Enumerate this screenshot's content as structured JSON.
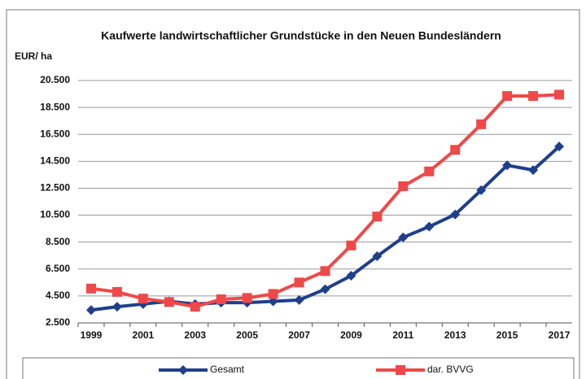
{
  "chart_data": {
    "type": "line",
    "title": "Kaufwerte landwirtschaftlicher Grundstücke in den Neuen Bundesländern",
    "y_label": "EUR/ ha",
    "categories": [
      "1999",
      null,
      "2001",
      null,
      "2003",
      null,
      "2005",
      null,
      "2007",
      null,
      "2009",
      null,
      "2011",
      null,
      "2013",
      null,
      "2015",
      null,
      "2017"
    ],
    "series": [
      {
        "name": "Gesamt",
        "color": "#1f3f8c",
        "marker": "diamond",
        "values": [
          3450,
          3700,
          3900,
          4100,
          3900,
          4000,
          4000,
          4100,
          4200,
          5000,
          6000,
          7450,
          8850,
          9650,
          10550,
          12350,
          14200,
          13850,
          15600
        ]
      },
      {
        "name": "dar. BVVG",
        "color": "#f04848",
        "marker": "square",
        "values": [
          5050,
          4800,
          4300,
          4050,
          3700,
          4250,
          4350,
          4650,
          5500,
          6350,
          8250,
          10400,
          12650,
          13750,
          15350,
          17250,
          19350,
          19350,
          19450
        ]
      }
    ],
    "ylim": [
      2500,
      20500
    ],
    "yticks": [
      {
        "value": 2500,
        "label": "2.500"
      },
      {
        "value": 4500,
        "label": "4.500"
      },
      {
        "value": 6500,
        "label": "6.500"
      },
      {
        "value": 8500,
        "label": "8.500"
      },
      {
        "value": 10500,
        "label": "10.500"
      },
      {
        "value": 12500,
        "label": "12.500"
      },
      {
        "value": 14500,
        "label": "14.500"
      },
      {
        "value": 16500,
        "label": "16.500"
      },
      {
        "value": 18500,
        "label": "18.500"
      },
      {
        "value": 20500,
        "label": "20.500"
      }
    ],
    "grid": true,
    "legend": "bottom"
  }
}
